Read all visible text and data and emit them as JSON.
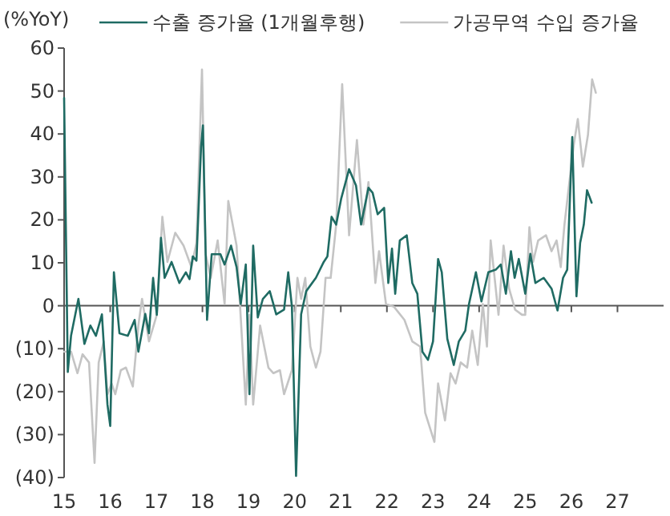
{
  "chart_data": {
    "type": "line",
    "ylabel": "(%YoY)",
    "xlim": [
      15,
      28
    ],
    "xticks": [
      15,
      16,
      17,
      18,
      19,
      20,
      21,
      22,
      23,
      24,
      25,
      26,
      27
    ],
    "ylim": [
      -40,
      60
    ],
    "yticks": [
      {
        "value": -40,
        "label": "(40)"
      },
      {
        "value": -30,
        "label": "(30)"
      },
      {
        "value": -20,
        "label": "(20)"
      },
      {
        "value": -10,
        "label": "(10)"
      },
      0,
      10,
      20,
      30,
      40,
      50,
      60
    ],
    "legend": "top",
    "marker": "none",
    "line_style": "solid",
    "series": [
      {
        "name": "가공무역 수입 증가율",
        "color": "#c4c4c4",
        "x": [
          15.0,
          15.15,
          15.29,
          15.4,
          15.54,
          15.66,
          15.75,
          15.86,
          15.94,
          16.03,
          16.11,
          16.23,
          16.34,
          16.49,
          16.61,
          16.69,
          16.84,
          17.01,
          17.13,
          17.24,
          17.41,
          17.59,
          17.76,
          17.87,
          17.99,
          18.07,
          18.18,
          18.33,
          18.48,
          18.56,
          18.74,
          18.85,
          18.94,
          19.02,
          19.1,
          19.25,
          19.43,
          19.54,
          19.68,
          19.77,
          19.94,
          20.06,
          20.14,
          20.23,
          20.34,
          20.46,
          20.56,
          20.67,
          20.78,
          20.9,
          21.03,
          21.18,
          21.35,
          21.49,
          21.6,
          21.75,
          21.83,
          21.98,
          22.15,
          22.38,
          22.55,
          22.72,
          22.83,
          23.03,
          23.11,
          23.26,
          23.38,
          23.49,
          23.6,
          23.74,
          23.85,
          23.97,
          24.08,
          24.17,
          24.25,
          24.42,
          24.53,
          24.65,
          24.78,
          24.93,
          25.0,
          25.09,
          25.17,
          25.28,
          25.45,
          25.57,
          25.68,
          25.77,
          25.85,
          25.93,
          26.05,
          26.14,
          26.25,
          26.36,
          26.45,
          26.53
        ],
        "values": [
          -10.7,
          -10.7,
          -15.7,
          -11.3,
          -13.2,
          -36.6,
          -13.2,
          -8.3,
          -20.6,
          -18.1,
          -20.6,
          -15,
          -14.4,
          -18.8,
          -4.6,
          1.6,
          -8.3,
          -2.1,
          20.7,
          10.2,
          17,
          14,
          9,
          14.6,
          55,
          12,
          6.5,
          15.2,
          0.4,
          24.4,
          14,
          -6.4,
          -23,
          -2.1,
          -23,
          -4.6,
          -14.4,
          -15.7,
          -15,
          -20.6,
          -15,
          6.5,
          1.6,
          6.5,
          -9.5,
          -14.4,
          -10.7,
          6.5,
          6.5,
          18.9,
          51.6,
          16.4,
          38.6,
          18.9,
          28.8,
          5.3,
          12.7,
          0.4,
          -0.2,
          -3.3,
          -8.3,
          -9.5,
          -24.9,
          -31.7,
          -18.1,
          -26.7,
          -15.7,
          -18.1,
          -13.2,
          -14.4,
          -5.8,
          -13.8,
          0.4,
          -9.5,
          15.2,
          -2.1,
          14,
          4,
          -0.9,
          -2.1,
          -2.1,
          18.3,
          10.2,
          15.2,
          16.4,
          12.7,
          15.2,
          9,
          18.9,
          26.3,
          37.3,
          43.5,
          32.4,
          39.8,
          52.7,
          49.6
        ]
      },
      {
        "name": "수출 증가율 (1개월후행)",
        "color": "#1f6b63",
        "x": [
          15.0,
          15.08,
          15.15,
          15.31,
          15.44,
          15.57,
          15.69,
          15.82,
          15.94,
          16.0,
          16.08,
          16.2,
          16.38,
          16.53,
          16.61,
          16.76,
          16.84,
          16.93,
          17.01,
          17.1,
          17.18,
          17.33,
          17.5,
          17.64,
          17.72,
          17.79,
          17.87,
          17.97,
          18.01,
          18.1,
          18.2,
          18.39,
          18.48,
          18.62,
          18.74,
          18.83,
          18.94,
          19.02,
          19.1,
          19.2,
          19.31,
          19.46,
          19.6,
          19.77,
          19.86,
          19.94,
          20.03,
          20.14,
          20.25,
          20.46,
          20.63,
          20.71,
          20.8,
          20.9,
          21.01,
          21.18,
          21.33,
          21.44,
          21.6,
          21.69,
          21.8,
          21.94,
          22.03,
          22.11,
          22.18,
          22.28,
          22.43,
          22.55,
          22.66,
          22.77,
          22.89,
          23.0,
          23.11,
          23.19,
          23.31,
          23.45,
          23.56,
          23.7,
          23.78,
          23.93,
          24.05,
          24.2,
          24.36,
          24.47,
          24.58,
          24.69,
          24.77,
          24.86,
          25.0,
          25.11,
          25.22,
          25.4,
          25.57,
          25.7,
          25.82,
          25.91,
          26.02,
          26.11,
          26.19,
          26.27,
          26.34,
          26.44
        ],
        "values": [
          48.4,
          -15.4,
          -7,
          1.6,
          -8.9,
          -4.6,
          -7,
          -2,
          -23,
          -28,
          7.8,
          -6.4,
          -7,
          -3.3,
          -10.7,
          -1.9,
          -6.4,
          6.5,
          -2.1,
          15.8,
          6.5,
          10.2,
          5.3,
          7.8,
          6.2,
          11.5,
          10.5,
          37,
          42,
          -3.3,
          12,
          12,
          9.6,
          14,
          9,
          0.4,
          9.6,
          -20.6,
          14,
          -2.7,
          1.6,
          3.4,
          -2,
          -0.9,
          7.8,
          -0.2,
          -39.6,
          -2,
          3.4,
          6.5,
          10.2,
          11.5,
          20.7,
          18.9,
          25,
          31.8,
          28,
          18.9,
          27.5,
          26.3,
          21.3,
          22.8,
          5.3,
          13.3,
          2.8,
          15.2,
          16.4,
          5.3,
          2.8,
          -10.7,
          -12.6,
          -8.3,
          10.9,
          7.8,
          -7.7,
          -13.8,
          -8.3,
          -5.8,
          0.4,
          7.8,
          1,
          7.8,
          8.4,
          9.6,
          2.8,
          12.7,
          6.5,
          10.9,
          2.8,
          12.1,
          5.3,
          6.5,
          4,
          -1.1,
          6.5,
          8.4,
          39.3,
          2.2,
          14.6,
          18.9,
          26.9,
          24
        ]
      }
    ]
  }
}
